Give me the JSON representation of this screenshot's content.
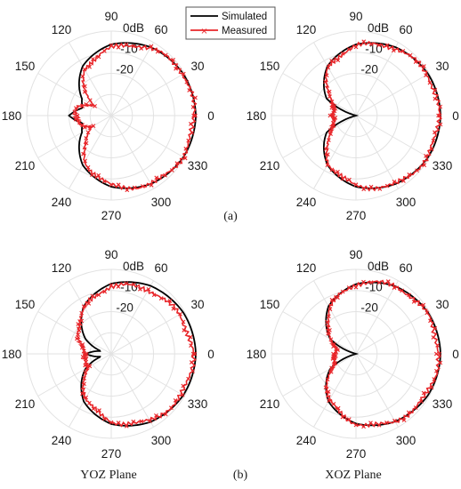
{
  "colors": {
    "simulated": "#000000",
    "measured": "#e8262a",
    "grid": "#e2e2e2"
  },
  "legend": {
    "entries": [
      "Simulated",
      "Measured"
    ],
    "placement": "top-center"
  },
  "captions": {
    "a": "(a)",
    "b": "(b)",
    "yoz": "YOZ Plane",
    "xoz": "XOZ Plane"
  },
  "chart_data": [
    {
      "type": "polar-line",
      "panel": "(a) left",
      "theta_ticks": [
        "0",
        "30",
        "60",
        "90",
        "120",
        "150",
        "180",
        "210",
        "240",
        "270",
        "300",
        "330"
      ],
      "r_ticks": [
        "0dB",
        "-10",
        "-20"
      ],
      "rlim_dB": [
        -40,
        0
      ],
      "series": [
        {
          "name": "Simulated",
          "angles_deg": [
            0,
            30,
            60,
            90,
            120,
            150,
            165,
            180,
            195,
            210,
            240,
            270,
            300,
            330,
            360
          ],
          "values_dB": [
            0,
            -0.6,
            -2.6,
            -6.3,
            -13,
            -24,
            -26,
            -20,
            -26,
            -24,
            -13,
            -6.3,
            -2.6,
            -0.6,
            0
          ]
        },
        {
          "name": "Measured",
          "angles_deg": [
            0,
            30,
            60,
            90,
            120,
            150,
            165,
            180,
            195,
            210,
            240,
            270,
            300,
            330,
            360
          ],
          "values_dB": [
            -1,
            -0.5,
            -3,
            -8,
            -15,
            -30,
            -24,
            -23,
            -24,
            -30,
            -15,
            -7,
            -2.5,
            -1,
            -1
          ]
        }
      ]
    },
    {
      "type": "polar-line",
      "panel": "(a) right",
      "theta_ticks": [
        "0",
        "30",
        "60",
        "90",
        "120",
        "150",
        "180",
        "210",
        "240",
        "270",
        "300",
        "330"
      ],
      "r_ticks": [
        "0dB",
        "-10",
        "-20"
      ],
      "rlim_dB": [
        -40,
        0
      ],
      "series": [
        {
          "name": "Simulated",
          "angles_deg": [
            0,
            30,
            60,
            90,
            120,
            150,
            165,
            180,
            195,
            210,
            240,
            270,
            300,
            330,
            360
          ],
          "values_dB": [
            0,
            -0.6,
            -2.6,
            -6.3,
            -13,
            -24,
            -40,
            -40,
            -40,
            -24,
            -13,
            -6.3,
            -2.6,
            -0.6,
            0
          ]
        },
        {
          "name": "Measured",
          "angles_deg": [
            0,
            30,
            60,
            90,
            120,
            150,
            165,
            180,
            195,
            210,
            240,
            270,
            300,
            330,
            360
          ],
          "values_dB": [
            -1,
            -1,
            -3,
            -7,
            -14,
            -27,
            -30,
            -28,
            -30,
            -27,
            -14,
            -7,
            -2.5,
            -1,
            -1
          ]
        }
      ]
    },
    {
      "type": "polar-line",
      "panel": "(b) YOZ Plane",
      "theta_ticks": [
        "0",
        "30",
        "60",
        "90",
        "120",
        "150",
        "180",
        "210",
        "240",
        "270",
        "300",
        "330"
      ],
      "r_ticks": [
        "0dB",
        "-10",
        "-20"
      ],
      "rlim_dB": [
        -40,
        0
      ],
      "series": [
        {
          "name": "Simulated",
          "angles_deg": [
            0,
            30,
            60,
            90,
            120,
            150,
            165,
            180,
            195,
            210,
            240,
            270,
            300,
            330,
            360
          ],
          "values_dB": [
            0,
            -0.7,
            -2.8,
            -6.8,
            -14,
            -26,
            -35,
            -28,
            -35,
            -26,
            -14,
            -6.8,
            -2.8,
            -0.7,
            0
          ]
        },
        {
          "name": "Measured",
          "angles_deg": [
            0,
            30,
            60,
            90,
            120,
            150,
            165,
            180,
            195,
            210,
            240,
            270,
            300,
            330,
            360
          ],
          "values_dB": [
            -1.5,
            -3,
            -5,
            -8,
            -15,
            -22,
            -26,
            -27,
            -28,
            -27,
            -16,
            -8,
            -3.5,
            -1.5,
            -1.5
          ]
        }
      ]
    },
    {
      "type": "polar-line",
      "panel": "(b) XOZ Plane",
      "theta_ticks": [
        "0",
        "30",
        "60",
        "90",
        "120",
        "150",
        "180",
        "210",
        "240",
        "270",
        "300",
        "330"
      ],
      "r_ticks": [
        "0dB",
        "-10",
        "-20"
      ],
      "rlim_dB": [
        -40,
        0
      ],
      "series": [
        {
          "name": "Simulated",
          "angles_deg": [
            0,
            30,
            60,
            90,
            120,
            150,
            165,
            180,
            195,
            210,
            240,
            270,
            300,
            330,
            360
          ],
          "values_dB": [
            0,
            -0.7,
            -3,
            -7,
            -14,
            -26,
            -40,
            -40,
            -40,
            -26,
            -14,
            -7,
            -3,
            -0.7,
            0
          ]
        },
        {
          "name": "Measured",
          "angles_deg": [
            0,
            30,
            60,
            90,
            120,
            150,
            165,
            180,
            195,
            210,
            240,
            270,
            300,
            330,
            360
          ],
          "values_dB": [
            -1,
            -1.5,
            -3,
            -7,
            -15,
            -27,
            -30,
            -30,
            -30,
            -27,
            -15,
            -7,
            -3,
            -1.5,
            -1
          ]
        }
      ]
    }
  ]
}
